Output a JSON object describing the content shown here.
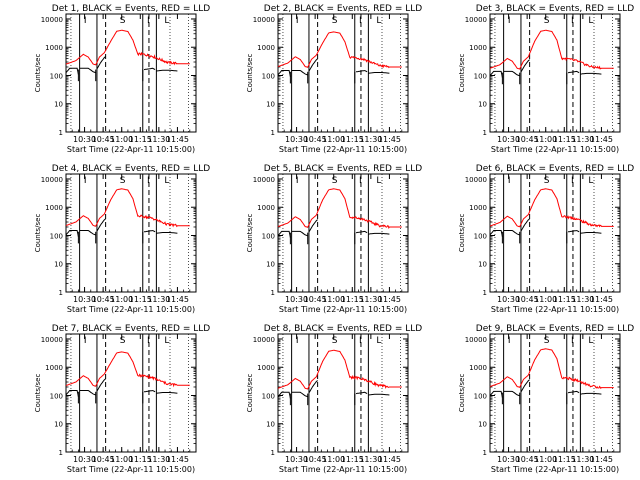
{
  "chart_data": {
    "type": "line",
    "layout": "3x3 grid",
    "xlabel": "Start Time (22-Apr-11 10:15:00)",
    "ylabel": "Counts/sec",
    "x_ticks": [
      "10:30",
      "10:45",
      "11:00",
      "11:15",
      "11:30",
      "11:45"
    ],
    "x_tick_minutes": [
      15,
      30,
      45,
      60,
      75,
      90
    ],
    "xlim_minutes": [
      0,
      105
    ],
    "y_scale": "log",
    "y_ticks": [
      "1",
      "10",
      "100",
      "1000",
      "10000"
    ],
    "ylim": [
      1,
      15000
    ],
    "markers": [
      "I",
      "S",
      "I",
      "L"
    ],
    "colors": {
      "events": "#000000",
      "lld": "#ff0000",
      "axes": "#000000",
      "background": "#ffffff"
    },
    "panels": [
      {
        "title": "Det 1, BLACK = Events, RED = LLD",
        "peak": 4000,
        "lld_base": 280,
        "evt_base": 180,
        "lld_after": 260
      },
      {
        "title": "Det 2, BLACK = Events, RED = LLD",
        "peak": 3500,
        "lld_base": 230,
        "evt_base": 150,
        "lld_after": 200
      },
      {
        "title": "Det 3, BLACK = Events, RED = LLD",
        "peak": 4000,
        "lld_base": 200,
        "evt_base": 140,
        "lld_after": 180
      },
      {
        "title": "Det 4, BLACK = Events, RED = LLD",
        "peak": 4500,
        "lld_base": 250,
        "evt_base": 150,
        "lld_after": 220
      },
      {
        "title": "Det 5, BLACK = Events, RED = LLD",
        "peak": 4500,
        "lld_base": 230,
        "evt_base": 140,
        "lld_after": 200
      },
      {
        "title": "Det 6, BLACK = Events, RED = LLD",
        "peak": 4500,
        "lld_base": 240,
        "evt_base": 150,
        "lld_after": 210
      },
      {
        "title": "Det 7, BLACK = Events, RED = LLD",
        "peak": 3500,
        "lld_base": 250,
        "evt_base": 150,
        "lld_after": 230
      },
      {
        "title": "Det 8, BLACK = Events, RED = LLD",
        "peak": 4000,
        "lld_base": 200,
        "evt_base": 130,
        "lld_after": 200
      },
      {
        "title": "Det 9, BLACK = Events, RED = LLD",
        "peak": 4500,
        "lld_base": 230,
        "evt_base": 140,
        "lld_after": 190
      }
    ]
  }
}
